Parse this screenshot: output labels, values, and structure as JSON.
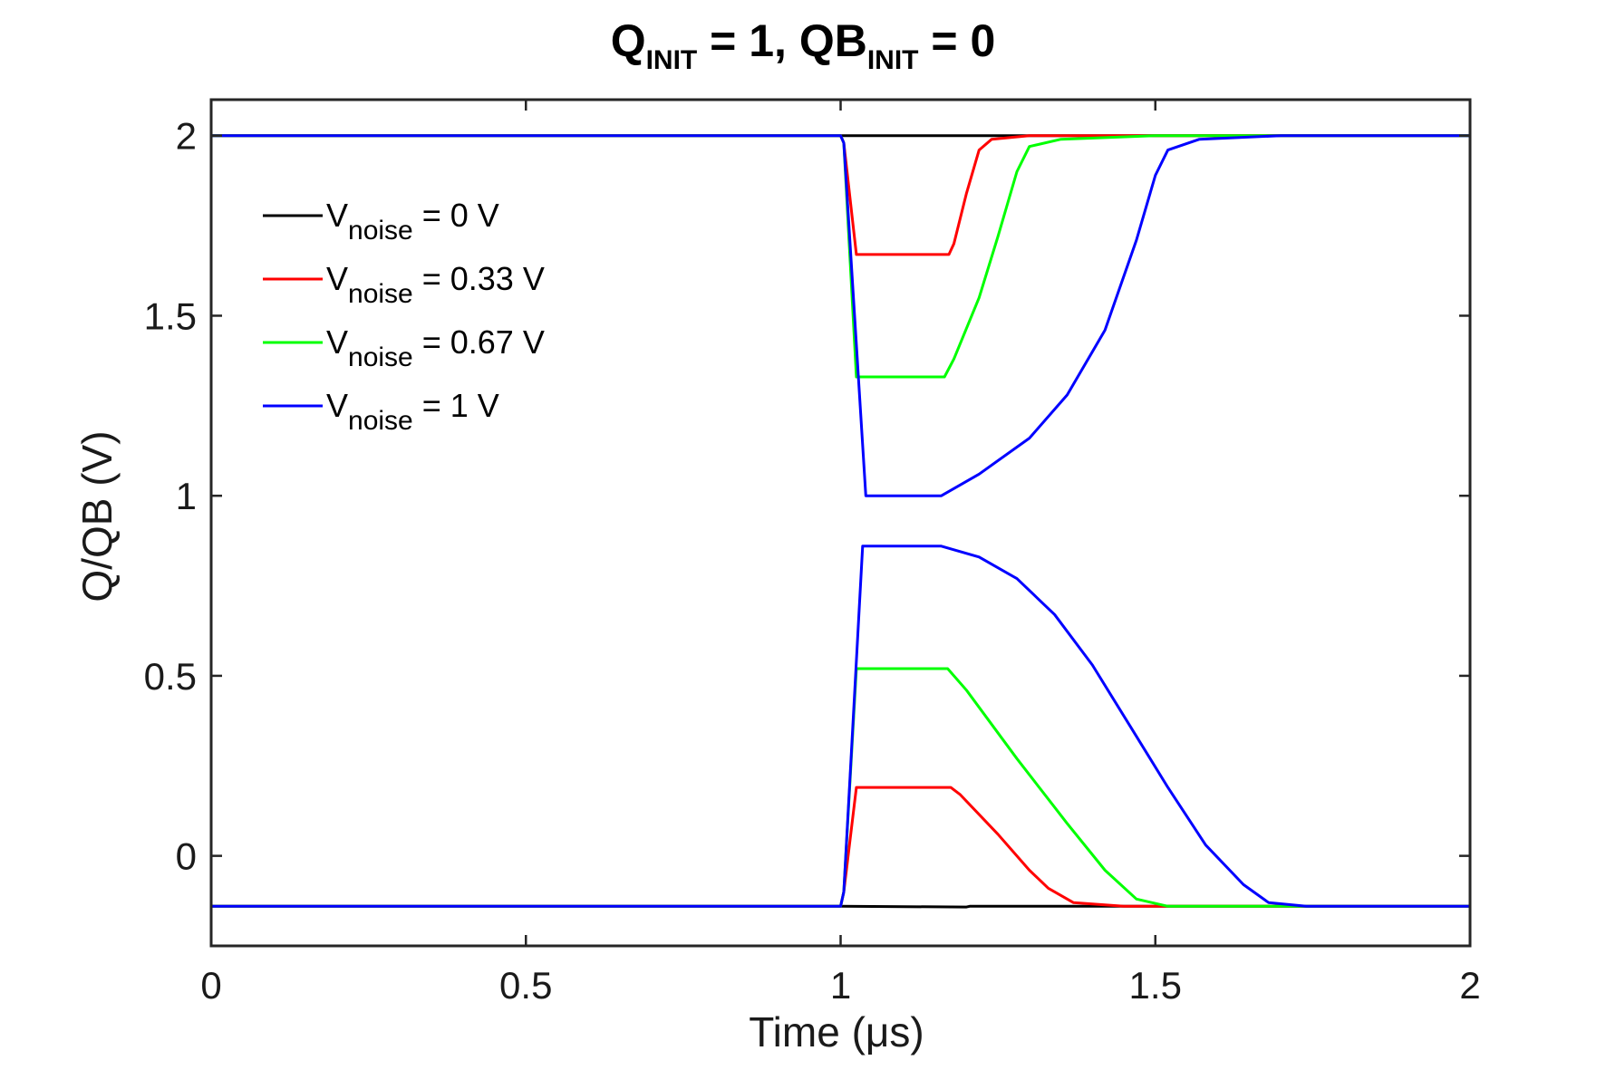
{
  "chart_data": {
    "type": "line",
    "title": {
      "q": "Q",
      "q_sub": "INIT",
      "middle": " = 1, QB",
      "qb_sub": "INIT",
      "end": " = 0"
    },
    "xlabel": "Time (μs)",
    "ylabel": "Q/QB (V)",
    "xlim": [
      0,
      2
    ],
    "ylim": [
      -0.25,
      2.1
    ],
    "x_ticks": [
      0,
      0.5,
      1,
      1.5,
      2
    ],
    "x_tick_labels": [
      "0",
      "0.5",
      "1",
      "1.5",
      "2"
    ],
    "y_ticks": [
      0,
      0.5,
      1,
      1.5,
      2
    ],
    "y_tick_labels": [
      "0",
      "0.5",
      "1",
      "1.5",
      "2"
    ],
    "legend_position": "top-left",
    "series": [
      {
        "name": "Vnoise = 0 V",
        "v": "V",
        "sub": "noise",
        "value": " = 0 V",
        "color": "#000000",
        "q": [
          [
            0,
            1.9999
          ],
          [
            1.0,
            1.9999
          ],
          [
            1.2,
            1.9999
          ],
          [
            1.205,
            2.0
          ],
          [
            2,
            2.0
          ]
        ],
        "qb": [
          [
            0,
            -0.14
          ],
          [
            1.0,
            -0.14
          ],
          [
            1.2,
            -0.142
          ],
          [
            1.205,
            -0.14
          ],
          [
            2,
            -0.14
          ]
        ]
      },
      {
        "name": "Vnoise = 0.33 V",
        "v": "V",
        "sub": "noise",
        "value": " = 0.33 V",
        "color": "#ff0000",
        "q": [
          [
            0,
            2.0
          ],
          [
            1.0,
            2.0
          ],
          [
            1.005,
            1.98
          ],
          [
            1.025,
            1.67
          ],
          [
            1.172,
            1.67
          ],
          [
            1.18,
            1.7
          ],
          [
            1.2,
            1.84
          ],
          [
            1.22,
            1.96
          ],
          [
            1.24,
            1.99
          ],
          [
            1.3,
            2.0
          ],
          [
            2,
            2.0
          ]
        ],
        "qb": [
          [
            0,
            -0.14
          ],
          [
            1.0,
            -0.14
          ],
          [
            1.005,
            -0.1
          ],
          [
            1.025,
            0.19
          ],
          [
            1.175,
            0.19
          ],
          [
            1.19,
            0.17
          ],
          [
            1.25,
            0.06
          ],
          [
            1.3,
            -0.04
          ],
          [
            1.33,
            -0.09
          ],
          [
            1.37,
            -0.13
          ],
          [
            1.45,
            -0.14
          ],
          [
            2,
            -0.14
          ]
        ]
      },
      {
        "name": "Vnoise = 0.67 V",
        "v": "V",
        "sub": "noise",
        "value": " = 0.67 V",
        "color": "#00ff00",
        "q": [
          [
            0,
            2.0
          ],
          [
            1.0,
            2.0
          ],
          [
            1.005,
            1.98
          ],
          [
            1.025,
            1.33
          ],
          [
            1.165,
            1.33
          ],
          [
            1.18,
            1.38
          ],
          [
            1.22,
            1.55
          ],
          [
            1.25,
            1.72
          ],
          [
            1.28,
            1.9
          ],
          [
            1.3,
            1.97
          ],
          [
            1.35,
            1.99
          ],
          [
            1.5,
            2.0
          ],
          [
            2,
            2.0
          ]
        ],
        "qb": [
          [
            0,
            -0.14
          ],
          [
            1.0,
            -0.14
          ],
          [
            1.005,
            -0.1
          ],
          [
            1.025,
            0.52
          ],
          [
            1.17,
            0.52
          ],
          [
            1.2,
            0.46
          ],
          [
            1.28,
            0.27
          ],
          [
            1.36,
            0.09
          ],
          [
            1.42,
            -0.04
          ],
          [
            1.47,
            -0.12
          ],
          [
            1.52,
            -0.14
          ],
          [
            2,
            -0.14
          ]
        ]
      },
      {
        "name": "Vnoise = 1 V",
        "v": "V",
        "sub": "noise",
        "value": " = 1 V",
        "color": "#0000ff",
        "q": [
          [
            0,
            2.0
          ],
          [
            1.0,
            2.0
          ],
          [
            1.005,
            1.98
          ],
          [
            1.04,
            1.0
          ],
          [
            1.16,
            1.0
          ],
          [
            1.22,
            1.06
          ],
          [
            1.3,
            1.16
          ],
          [
            1.36,
            1.28
          ],
          [
            1.42,
            1.46
          ],
          [
            1.47,
            1.71
          ],
          [
            1.5,
            1.89
          ],
          [
            1.52,
            1.96
          ],
          [
            1.57,
            1.99
          ],
          [
            1.7,
            2.0
          ],
          [
            2,
            2.0
          ]
        ],
        "qb": [
          [
            0,
            -0.14
          ],
          [
            1.0,
            -0.14
          ],
          [
            1.005,
            -0.1
          ],
          [
            1.035,
            0.86
          ],
          [
            1.16,
            0.86
          ],
          [
            1.22,
            0.83
          ],
          [
            1.28,
            0.77
          ],
          [
            1.34,
            0.67
          ],
          [
            1.4,
            0.53
          ],
          [
            1.46,
            0.36
          ],
          [
            1.52,
            0.19
          ],
          [
            1.58,
            0.03
          ],
          [
            1.64,
            -0.08
          ],
          [
            1.68,
            -0.13
          ],
          [
            1.74,
            -0.14
          ],
          [
            2,
            -0.14
          ]
        ]
      }
    ]
  }
}
